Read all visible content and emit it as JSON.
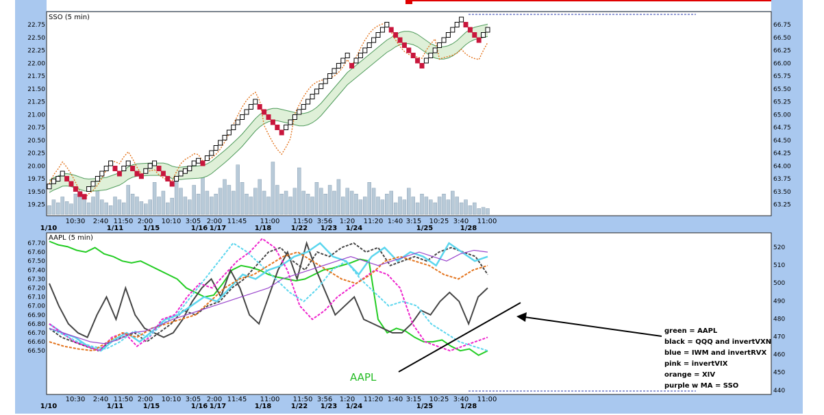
{
  "colors": {
    "frame": "#a9c8ef",
    "panel": "#ffffff",
    "bull": "#ffffff",
    "bear": "#c8163c",
    "volume": "#b8cad8",
    "ma_band": "#dff0d8",
    "ma_line": "#4e9a5a",
    "orange": "#e3731c",
    "green": "#22cc22",
    "black": "#444444",
    "blue": "#5bd6ee",
    "pink": "#ee22cc",
    "purple": "#9944cc",
    "arrow": "#000000"
  },
  "chart_data": [
    {
      "type": "candlestick",
      "title": "SSO (5 min)",
      "left_ticks": [
        "22.75",
        "22.50",
        "22.25",
        "22.00",
        "21.75",
        "21.50",
        "21.25",
        "21.00",
        "20.75",
        "20.50",
        "20.25",
        "20.00",
        "19.75",
        "19.50",
        "19.25"
      ],
      "right_ticks": [
        "66.75",
        "66.50",
        "66.25",
        "66.00",
        "65.75",
        "65.50",
        "65.25",
        "65.00",
        "64.75",
        "64.50",
        "64.25",
        "64.00",
        "63.75",
        "63.50",
        "63.25"
      ],
      "ylim_left": [
        19.07,
        22.92
      ],
      "time_labels": [
        "10:30",
        "2:40",
        "11:50",
        "2:00",
        "10:10",
        "3:05",
        "2:00",
        "11:45",
        "11:00",
        "11:50",
        "3:56",
        "1:20",
        "11:20",
        "1:40",
        "3:15",
        "10:25",
        "3:40",
        "11:00"
      ],
      "date_labels": [
        "1/10",
        "1/11",
        "1/15",
        "1/16",
        "1/17",
        "1/18",
        "1/22",
        "1/23",
        "1/24",
        "1/25",
        "1/28"
      ],
      "closes": [
        19.6,
        19.7,
        19.75,
        19.85,
        19.75,
        19.65,
        19.55,
        19.45,
        19.4,
        19.55,
        19.65,
        19.75,
        19.85,
        19.95,
        20.05,
        19.95,
        19.85,
        19.95,
        20.05,
        19.95,
        19.85,
        19.8,
        19.9,
        20.0,
        20.05,
        19.95,
        19.85,
        19.75,
        19.65,
        19.75,
        19.85,
        19.9,
        19.95,
        20.05,
        20.1,
        20.05,
        20.15,
        20.25,
        20.35,
        20.45,
        20.55,
        20.65,
        20.75,
        20.85,
        20.95,
        21.05,
        21.15,
        21.25,
        21.15,
        21.05,
        20.95,
        20.85,
        20.75,
        20.65,
        20.75,
        20.85,
        20.95,
        21.05,
        21.15,
        21.25,
        21.35,
        21.45,
        21.55,
        21.65,
        21.75,
        21.85,
        21.95,
        22.05,
        22.15,
        21.95,
        22.05,
        22.15,
        22.25,
        22.35,
        22.45,
        22.55,
        22.65,
        22.75,
        22.65,
        22.55,
        22.45,
        22.35,
        22.25,
        22.15,
        22.05,
        21.95,
        22.05,
        22.15,
        22.25,
        22.35,
        22.45,
        22.55,
        22.65,
        22.75,
        22.85,
        22.75,
        22.65,
        22.55,
        22.45,
        22.55,
        22.65
      ],
      "volumes": [
        0.15,
        0.25,
        0.2,
        0.3,
        0.22,
        0.18,
        0.35,
        0.4,
        0.28,
        0.2,
        0.3,
        0.45,
        0.25,
        0.2,
        0.15,
        0.3,
        0.25,
        0.2,
        0.5,
        0.35,
        0.3,
        0.22,
        0.18,
        0.25,
        0.55,
        0.3,
        0.4,
        0.2,
        0.28,
        0.6,
        0.45,
        0.3,
        0.25,
        0.5,
        0.35,
        0.7,
        0.4,
        0.3,
        0.35,
        0.45,
        0.6,
        0.5,
        0.4,
        0.85,
        0.55,
        0.35,
        0.3,
        0.45,
        0.6,
        0.4,
        0.3,
        0.9,
        0.5,
        0.35,
        0.4,
        0.3,
        0.45,
        0.8,
        0.4,
        0.35,
        0.3,
        0.55,
        0.45,
        0.35,
        0.5,
        0.4,
        0.6,
        0.3,
        0.45,
        0.4,
        0.35,
        0.25,
        0.3,
        0.55,
        0.45,
        0.3,
        0.25,
        0.35,
        0.4,
        0.2,
        0.3,
        0.25,
        0.45,
        0.3,
        0.2,
        0.35,
        0.3,
        0.25,
        0.2,
        0.3,
        0.35,
        0.25,
        0.4,
        0.3,
        0.2,
        0.25,
        0.15,
        0.2,
        0.1,
        0.12,
        0.1
      ]
    },
    {
      "type": "line",
      "title": "AAPL (5 min)",
      "left_ticks": [
        "67.70",
        "67.60",
        "67.50",
        "67.40",
        "67.30",
        "67.20",
        "67.10",
        "67.00",
        "66.90",
        "66.80",
        "66.70",
        "66.60",
        "66.50"
      ],
      "right_ticks": [
        "520",
        "510",
        "500",
        "490",
        "480",
        "470",
        "460",
        "450",
        "440"
      ],
      "ylim_left": [
        66.425,
        67.77
      ],
      "time_labels": [
        "10:30",
        "2:40",
        "11:50",
        "2:00",
        "10:10",
        "3:05",
        "2:00",
        "11:45",
        "11:00",
        "11:50",
        "3:56",
        "1:20",
        "11:20",
        "1:40",
        "3:15",
        "10:25",
        "3:40",
        "11:00"
      ],
      "date_labels": [
        "1/10",
        "1/11",
        "1/15",
        "1/16",
        "1/17",
        "1/18",
        "1/22",
        "1/23",
        "1/24",
        "1/25",
        "1/28"
      ],
      "annotation": "AAPL",
      "legend": [
        "green = AAPL",
        "black = QQQ and invertVXN",
        "blue = IWM and invertRVX",
        "pink = invertVIX",
        "orange = XIV",
        "purple w MA = SSO"
      ],
      "series": [
        {
          "color": "green",
          "dash": "solid",
          "values": [
            67.72,
            67.68,
            67.66,
            67.62,
            67.6,
            67.65,
            67.58,
            67.55,
            67.5,
            67.48,
            67.5,
            67.45,
            67.4,
            67.35,
            67.3,
            67.2,
            67.15,
            67.1,
            67.12,
            67.25,
            67.4,
            67.45,
            67.43,
            67.4,
            67.35,
            67.32,
            67.3,
            67.28,
            67.3,
            67.35,
            67.4,
            67.42,
            67.45,
            67.48,
            67.52,
            67.5,
            66.85,
            66.7,
            66.75,
            66.72,
            66.65,
            66.6,
            66.6,
            66.62,
            66.55,
            66.5,
            66.52,
            66.45,
            66.5
          ]
        },
        {
          "color": "black",
          "dash": "solid",
          "values": [
            67.25,
            67.0,
            66.8,
            66.7,
            66.65,
            66.9,
            67.1,
            66.85,
            67.2,
            66.9,
            66.75,
            66.7,
            66.65,
            66.7,
            66.85,
            67.05,
            67.2,
            67.3,
            67.1,
            67.4,
            67.2,
            66.9,
            66.8,
            67.1,
            67.4,
            67.6,
            67.3,
            67.7,
            67.4,
            67.15,
            66.9,
            67.0,
            67.1,
            66.85,
            66.8,
            66.75,
            66.7,
            66.7,
            66.8,
            66.95,
            66.9,
            67.05,
            67.15,
            67.05,
            66.8,
            67.1,
            67.2
          ]
        },
        {
          "color": "black",
          "dash": "dashed",
          "values": [
            66.75,
            66.65,
            66.6,
            66.55,
            66.5,
            66.6,
            66.65,
            66.7,
            66.6,
            66.7,
            66.8,
            66.95,
            66.9,
            67.0,
            67.05,
            67.2,
            67.3,
            67.45,
            67.6,
            67.65,
            67.5,
            67.4,
            67.6,
            67.55,
            67.65,
            67.7,
            67.6,
            67.65,
            67.45,
            67.5,
            67.55,
            67.5,
            67.6,
            67.65,
            67.6,
            67.55,
            67.35
          ]
        },
        {
          "color": "blue",
          "dash": "solid",
          "values": [
            66.8,
            66.7,
            66.65,
            66.55,
            66.5,
            66.62,
            66.7,
            66.6,
            66.72,
            66.85,
            66.9,
            67.0,
            67.1,
            67.05,
            67.2,
            67.35,
            67.3,
            67.4,
            67.45,
            67.55,
            67.6,
            67.7,
            67.55,
            67.5,
            67.35,
            67.55,
            67.65,
            67.5,
            67.6,
            67.55,
            67.45,
            67.7,
            67.6,
            67.5,
            67.55
          ]
        },
        {
          "color": "pink",
          "dash": "dashed",
          "values": [
            66.8,
            66.7,
            66.6,
            66.55,
            66.5,
            66.65,
            66.7,
            66.55,
            66.65,
            66.85,
            66.9,
            67.1,
            67.25,
            67.2,
            67.35,
            67.5,
            67.6,
            67.75,
            67.65,
            67.4,
            67.0,
            66.85,
            66.95,
            67.1,
            67.2,
            67.3,
            67.4,
            67.35,
            67.2,
            66.8,
            66.6,
            66.55,
            66.5,
            66.55,
            66.6,
            66.65
          ]
        },
        {
          "color": "blue",
          "dash": "dashed",
          "values": [
            66.75,
            66.68,
            66.6,
            66.55,
            66.52,
            66.6,
            66.72,
            66.65,
            66.8,
            66.9,
            67.1,
            67.3,
            67.5,
            67.7,
            67.6,
            67.45,
            67.3,
            67.15,
            67.05,
            67.2,
            67.4,
            67.5,
            67.3,
            67.15,
            67.0,
            67.05,
            67.0,
            66.8,
            66.7,
            66.6,
            66.55,
            66.5
          ]
        },
        {
          "color": "orange",
          "dash": "dashed",
          "values": [
            66.6,
            66.55,
            66.52,
            66.5,
            66.6,
            66.7,
            66.65,
            66.75,
            66.8,
            66.85,
            66.9,
            67.05,
            67.2,
            67.3,
            67.35,
            67.45,
            67.55,
            67.6,
            67.5,
            67.4,
            67.3,
            67.25,
            67.35,
            67.5,
            67.55,
            67.5,
            67.45,
            67.35,
            67.3,
            67.4,
            67.45
          ]
        },
        {
          "color": "purple",
          "dash": "solid",
          "values": [
            66.75,
            66.7,
            66.65,
            66.6,
            66.58,
            66.62,
            66.7,
            66.72,
            66.78,
            66.85,
            66.9,
            66.95,
            67.0,
            67.05,
            67.1,
            67.15,
            67.2,
            67.3,
            67.35,
            67.4,
            67.45,
            67.5,
            67.55,
            67.5,
            67.45,
            67.5,
            67.55,
            67.6,
            67.55,
            67.5,
            67.58,
            67.62,
            67.6
          ]
        }
      ]
    }
  ]
}
